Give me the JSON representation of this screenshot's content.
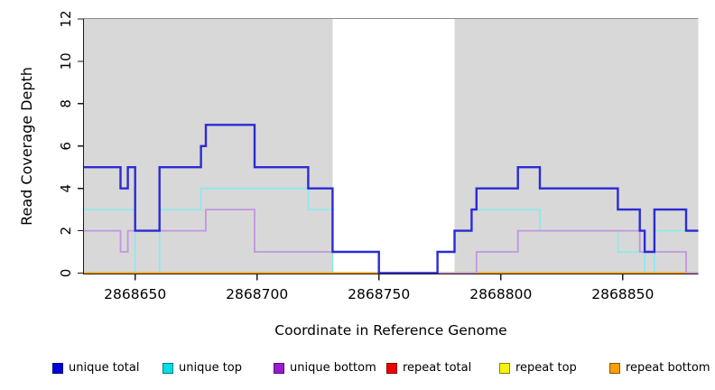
{
  "figure": {
    "background_color": "#FFFFFF"
  },
  "chart_data": {
    "type": "line",
    "subtype": "step",
    "title": "",
    "xlabel": "Coordinate in Reference Genome",
    "ylabel": "Read Coverage Depth",
    "xlim": [
      2868629,
      2868881
    ],
    "ylim": [
      0,
      12
    ],
    "xticks": [
      2868650,
      2868700,
      2868750,
      2868800,
      2868850
    ],
    "yticks": [
      0,
      2,
      4,
      6,
      8,
      10,
      12
    ],
    "grid": false,
    "legend_position": "bottom",
    "shade_color": "#D8D8D8",
    "shaded_regions": [
      {
        "x0": 2868629,
        "x1": 2868731
      },
      {
        "x0": 2868781,
        "x1": 2868881
      }
    ],
    "draw_order": [
      "repeat total",
      "repeat top",
      "unique top",
      "repeat bottom",
      "unique bottom",
      "unique total"
    ],
    "series": [
      {
        "name": "unique total",
        "line_color": "#2B2BD5",
        "legend_color": "#0000DC",
        "line_width": 2.4,
        "points": [
          [
            2868629,
            5
          ],
          [
            2868644,
            4
          ],
          [
            2868647,
            5
          ],
          [
            2868650,
            2
          ],
          [
            2868660,
            5
          ],
          [
            2868677,
            6
          ],
          [
            2868679,
            7
          ],
          [
            2868699,
            5
          ],
          [
            2868721,
            4
          ],
          [
            2868731,
            1
          ],
          [
            2868750,
            0
          ],
          [
            2868774,
            1
          ],
          [
            2868781,
            2
          ],
          [
            2868788,
            3
          ],
          [
            2868790,
            4
          ],
          [
            2868807,
            5
          ],
          [
            2868816,
            4
          ],
          [
            2868848,
            3
          ],
          [
            2868857,
            2
          ],
          [
            2868859,
            1
          ],
          [
            2868863,
            3
          ],
          [
            2868876,
            2
          ]
        ]
      },
      {
        "name": "unique top",
        "line_color": "#8FE8EC",
        "legend_color": "#00DEE6",
        "line_width": 1.8,
        "points": [
          [
            2868629,
            3
          ],
          [
            2868650,
            0
          ],
          [
            2868660,
            3
          ],
          [
            2868677,
            4
          ],
          [
            2868721,
            3
          ],
          [
            2868731,
            0
          ],
          [
            2868774,
            1
          ],
          [
            2868781,
            2
          ],
          [
            2868788,
            3
          ],
          [
            2868816,
            2
          ],
          [
            2868848,
            1
          ],
          [
            2868859,
            0
          ],
          [
            2868863,
            2
          ]
        ]
      },
      {
        "name": "unique bottom",
        "line_color": "#C295DF",
        "legend_color": "#9C1ACF",
        "line_width": 1.8,
        "points": [
          [
            2868629,
            2
          ],
          [
            2868644,
            1
          ],
          [
            2868647,
            2
          ],
          [
            2868679,
            3
          ],
          [
            2868699,
            1
          ],
          [
            2868750,
            0
          ],
          [
            2868790,
            1
          ],
          [
            2868807,
            2
          ],
          [
            2868857,
            1
          ],
          [
            2868876,
            0
          ]
        ]
      },
      {
        "name": "repeat total",
        "line_color": "#CC3333",
        "legend_color": "#EE0000",
        "line_width": 1.8,
        "points": [
          [
            2868629,
            0
          ]
        ]
      },
      {
        "name": "repeat top",
        "line_color": "#EEEE00",
        "legend_color": "#F5F500",
        "line_width": 1.8,
        "points": [
          [
            2868629,
            0
          ]
        ]
      },
      {
        "name": "repeat bottom",
        "line_color": "#FFA019",
        "legend_color": "#FF9E00",
        "line_width": 2.2,
        "points": [
          [
            2868629,
            0
          ]
        ]
      }
    ]
  },
  "legend_item_lefts": [
    58,
    180,
    303,
    428,
    553,
    675
  ]
}
